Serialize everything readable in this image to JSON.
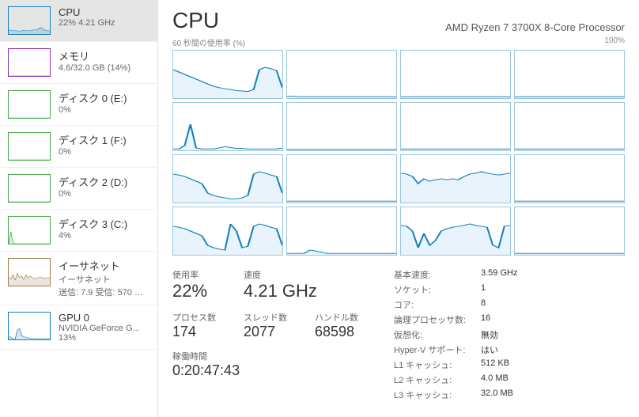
{
  "colors": {
    "cpu": "#117dbb",
    "mem": "#8b2db4",
    "disk": "#4ca64c",
    "eth": "#a17a4f",
    "gpu": "#117dbb",
    "chart_border": "#9cc6de",
    "chart_fill": "#e8f3fb"
  },
  "sidebar": [
    {
      "key": "cpu",
      "title": "CPU",
      "sub": "22%  4.21 GHz",
      "color": "#117dbb",
      "spark": [
        15,
        14,
        13,
        12,
        12,
        11,
        12,
        14,
        13,
        12,
        12,
        14,
        16,
        14,
        22,
        24,
        18,
        14,
        12,
        12
      ],
      "selected": true
    },
    {
      "key": "mem",
      "title": "メモリ",
      "sub": "4.6/32.0 GB (14%)",
      "color": "#8b2db4",
      "spark": [
        0,
        0,
        0,
        0,
        0,
        0,
        0,
        0,
        0,
        0,
        0,
        0,
        0,
        0,
        0,
        0,
        0,
        0,
        0,
        0
      ]
    },
    {
      "key": "disk0",
      "title": "ディスク 0 (E:)",
      "sub": "0%",
      "color": "#4ca64c",
      "spark": [
        0,
        0,
        0,
        0,
        0,
        0,
        0,
        0,
        0,
        0,
        0,
        0,
        0,
        0,
        0,
        0,
        0,
        0,
        0,
        0
      ]
    },
    {
      "key": "disk1",
      "title": "ディスク 1 (F:)",
      "sub": "0%",
      "color": "#4ca64c",
      "spark": [
        0,
        0,
        0,
        0,
        0,
        0,
        0,
        0,
        0,
        0,
        0,
        0,
        0,
        0,
        0,
        0,
        0,
        0,
        0,
        0
      ]
    },
    {
      "key": "disk2",
      "title": "ディスク 2 (D:)",
      "sub": "0%",
      "color": "#4ca64c",
      "spark": [
        0,
        0,
        0,
        0,
        0,
        0,
        0,
        0,
        0,
        0,
        0,
        0,
        0,
        0,
        0,
        0,
        0,
        0,
        0,
        0
      ]
    },
    {
      "key": "disk3",
      "title": "ディスク 3 (C:)",
      "sub": "4%",
      "color": "#4ca64c",
      "spark": [
        0,
        45,
        5,
        0,
        0,
        0,
        0,
        0,
        0,
        0,
        0,
        0,
        0,
        0,
        0,
        0,
        0,
        0,
        0,
        0
      ]
    },
    {
      "key": "eth",
      "title": "イーサネット",
      "sub": "イーサネット",
      "sub2": "送信: 7.9  受信: 570 Mbp",
      "color": "#a17a4f",
      "spark": [
        30,
        25,
        40,
        20,
        45,
        30,
        35,
        22,
        40,
        28,
        35,
        30,
        25,
        28,
        30,
        32,
        26,
        30,
        28,
        30
      ]
    },
    {
      "key": "gpu",
      "title": "GPU 0",
      "sub": "NVIDIA GeForce G...",
      "sub2": "13%",
      "color": "#117dbb",
      "spark": [
        10,
        8,
        3,
        2,
        35,
        40,
        15,
        10,
        8,
        6,
        5,
        4,
        3,
        3,
        3,
        3,
        3,
        3,
        3,
        3
      ]
    }
  ],
  "main": {
    "title": "CPU",
    "processor": "AMD Ryzen 7 3700X 8-Core Processor",
    "chart_left_label": "60 秒間の使用率 (%)",
    "chart_right_label": "100%",
    "cores": [
      [
        60,
        55,
        50,
        45,
        40,
        35,
        30,
        25,
        22,
        20,
        18,
        16,
        15,
        14,
        18,
        60,
        65,
        62,
        58,
        22
      ],
      [
        4,
        4,
        3,
        3,
        3,
        3,
        3,
        3,
        3,
        3,
        3,
        3,
        3,
        3,
        3,
        3,
        3,
        3,
        3,
        3
      ],
      [
        3,
        3,
        3,
        3,
        3,
        3,
        3,
        3,
        3,
        3,
        3,
        3,
        3,
        3,
        3,
        3,
        3,
        3,
        3,
        3
      ],
      [
        3,
        3,
        3,
        3,
        3,
        3,
        3,
        3,
        3,
        3,
        3,
        3,
        3,
        3,
        3,
        3,
        3,
        3,
        3,
        3
      ],
      [
        3,
        3,
        10,
        55,
        5,
        3,
        3,
        3,
        5,
        8,
        6,
        4,
        4,
        3,
        3,
        3,
        3,
        3,
        3,
        5
      ],
      [
        2,
        2,
        2,
        2,
        2,
        2,
        2,
        2,
        2,
        2,
        2,
        2,
        2,
        2,
        2,
        2,
        2,
        2,
        2,
        2
      ],
      [
        3,
        3,
        3,
        3,
        3,
        3,
        3,
        3,
        3,
        3,
        3,
        3,
        3,
        3,
        3,
        3,
        3,
        3,
        3,
        3
      ],
      [
        3,
        3,
        3,
        3,
        3,
        3,
        3,
        3,
        3,
        3,
        3,
        3,
        3,
        3,
        3,
        3,
        3,
        3,
        3,
        3
      ],
      [
        60,
        58,
        55,
        50,
        45,
        40,
        20,
        15,
        12,
        10,
        8,
        8,
        10,
        15,
        60,
        65,
        62,
        58,
        55,
        20
      ],
      [
        3,
        3,
        3,
        3,
        3,
        3,
        3,
        3,
        3,
        3,
        3,
        3,
        3,
        3,
        3,
        3,
        3,
        3,
        3,
        3
      ],
      [
        62,
        60,
        55,
        40,
        50,
        45,
        48,
        50,
        48,
        50,
        48,
        55,
        60,
        62,
        65,
        62,
        60,
        58,
        60,
        62
      ],
      [
        3,
        3,
        3,
        3,
        3,
        3,
        3,
        3,
        3,
        3,
        3,
        3,
        3,
        3,
        3,
        3,
        3,
        3,
        3,
        3
      ],
      [
        60,
        58,
        55,
        50,
        45,
        40,
        20,
        15,
        12,
        10,
        65,
        50,
        15,
        18,
        60,
        65,
        62,
        58,
        55,
        20
      ],
      [
        3,
        3,
        3,
        3,
        10,
        8,
        5,
        3,
        3,
        3,
        3,
        3,
        3,
        3,
        3,
        3,
        3,
        3,
        3,
        3
      ],
      [
        62,
        60,
        50,
        15,
        45,
        20,
        30,
        50,
        55,
        58,
        60,
        62,
        65,
        62,
        60,
        58,
        20,
        15,
        60,
        62
      ],
      [
        3,
        3,
        3,
        3,
        3,
        3,
        3,
        3,
        3,
        3,
        3,
        3,
        3,
        3,
        3,
        3,
        3,
        3,
        3,
        3
      ]
    ],
    "stats": {
      "usage_label": "使用率",
      "usage": "22%",
      "speed_label": "速度",
      "speed": "4.21 GHz",
      "proc_label": "プロセス数",
      "proc": "174",
      "thread_label": "スレッド数",
      "thread": "2077",
      "handle_label": "ハンドル数",
      "handle": "68598",
      "uptime_label": "稼働時間",
      "uptime": "0:20:47:43"
    },
    "info": [
      {
        "label": "基本速度:",
        "value": "3.59 GHz"
      },
      {
        "label": "ソケット:",
        "value": "1"
      },
      {
        "label": "コア:",
        "value": "8"
      },
      {
        "label": "論理プロセッサ数:",
        "value": "16"
      },
      {
        "label": "仮想化:",
        "value": "無効"
      },
      {
        "label": "Hyper-V サポート:",
        "value": "はい"
      },
      {
        "label": "L1 キャッシュ:",
        "value": "512 KB"
      },
      {
        "label": "L2 キャッシュ:",
        "value": "4.0 MB"
      },
      {
        "label": "L3 キャッシュ:",
        "value": "32.0 MB"
      }
    ]
  }
}
